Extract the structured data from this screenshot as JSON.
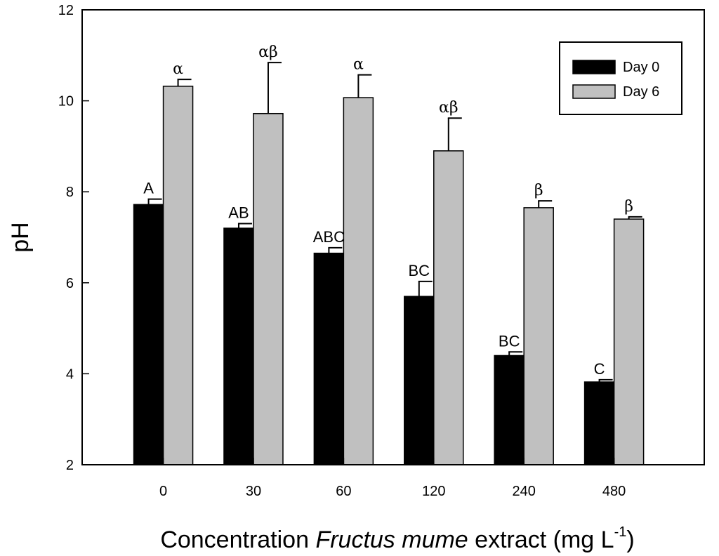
{
  "chart_data": {
    "type": "bar",
    "categories": [
      "0",
      "30",
      "60",
      "120",
      "240",
      "480"
    ],
    "series": [
      {
        "name": "Day 0",
        "color": "#000000",
        "values": [
          7.72,
          7.2,
          6.65,
          5.7,
          4.4,
          3.82
        ],
        "errors": [
          0.12,
          0.1,
          0.12,
          0.33,
          0.08,
          0.05
        ],
        "letters": [
          "A",
          "AB",
          "ABC",
          "BC",
          "BC",
          "C"
        ]
      },
      {
        "name": "Day 6",
        "color": "#c0c0c0",
        "values": [
          10.32,
          9.72,
          10.07,
          8.9,
          7.65,
          7.4
        ],
        "errors": [
          0.15,
          1.12,
          0.5,
          0.72,
          0.15,
          0.05
        ],
        "letters": [
          "α",
          "αβ",
          "α",
          "αβ",
          "β",
          "β"
        ]
      }
    ],
    "xlabel": {
      "prefix": "Concentration ",
      "italic": "Fructus mume",
      "suffix": " extract (mg L",
      "superscript": "-1",
      "close": ")"
    },
    "ylabel": "pH",
    "ylim": [
      2,
      12
    ],
    "yticks": [
      "2",
      "4",
      "6",
      "8",
      "10",
      "12"
    ],
    "grid": false,
    "legend_position": "top-right"
  }
}
